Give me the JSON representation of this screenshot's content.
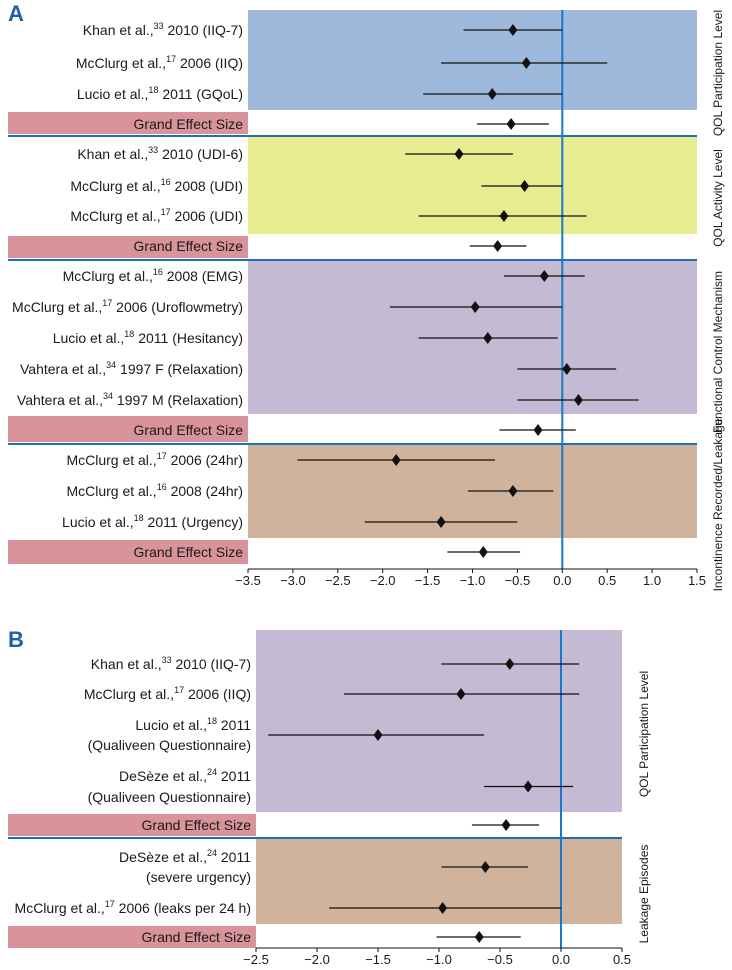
{
  "chart_data": [
    {
      "type": "forest",
      "panel": "A",
      "xlim": [
        -3.5,
        1.5
      ],
      "x_ticks": [
        -3.5,
        -3.0,
        -2.5,
        -2.0,
        -1.5,
        -1.0,
        -0.5,
        0.0,
        0.5,
        1.0,
        1.5
      ],
      "x_tick_labels": [
        "−3.5",
        "−3.0",
        "−2.5",
        "−2.0",
        "−1.5",
        "−1.0",
        "−0.5",
        "0.0",
        "0.5",
        "1.0",
        "1.5"
      ],
      "reference_line": 0,
      "groups": [
        {
          "name": "QOL Participation Level",
          "color": "#9fb9dc",
          "studies": [
            {
              "author": "Khan et al.,",
              "ref": "33",
              "detail": "2010 (IIQ-7)",
              "est": -0.55,
              "lo": -1.1,
              "hi": 0.0
            },
            {
              "author": "McClurg et al.,",
              "ref": "17",
              "detail": "2006 (IIQ)",
              "est": -0.4,
              "lo": -1.35,
              "hi": 0.5
            },
            {
              "author": "Lucio et al.,",
              "ref": "18",
              "detail": "2011 (GQoL)",
              "est": -0.78,
              "lo": -1.55,
              "hi": 0.0
            }
          ],
          "grand": {
            "label": "Grand Effect Size",
            "est": -0.57,
            "lo": -0.95,
            "hi": -0.15
          }
        },
        {
          "name": "QOL Activity Level",
          "color": "#e8ec90",
          "studies": [
            {
              "author": "Khan et al.,",
              "ref": "33",
              "detail": "2010 (UDI-6)",
              "est": -1.15,
              "lo": -1.75,
              "hi": -0.55
            },
            {
              "author": "McClurg et al.,",
              "ref": "16",
              "detail": "2008 (UDI)",
              "est": -0.42,
              "lo": -0.9,
              "hi": 0.0
            },
            {
              "author": "McClurg et al.,",
              "ref": "17",
              "detail": "2006 (UDI)",
              "est": -0.65,
              "lo": -1.6,
              "hi": 0.27
            }
          ],
          "grand": {
            "label": "Grand Effect Size",
            "est": -0.72,
            "lo": -1.03,
            "hi": -0.4
          }
        },
        {
          "name": "Functional Control Mechanism",
          "color": "#c4bad3",
          "studies": [
            {
              "author": "McClurg et al.,",
              "ref": "16",
              "detail": "2008 (EMG)",
              "est": -0.2,
              "lo": -0.65,
              "hi": 0.25
            },
            {
              "author": "McClurg et al.,",
              "ref": "17",
              "detail": "2006 (Uroflowmetry)",
              "est": -0.97,
              "lo": -1.92,
              "hi": 0.0
            },
            {
              "author": "Lucio et al.,",
              "ref": "18",
              "detail": "2011 (Hesitancy)",
              "est": -0.83,
              "lo": -1.6,
              "hi": -0.05
            },
            {
              "author": "Vahtera et al.,",
              "ref": "34",
              "detail": "1997 F (Relaxation)",
              "est": 0.05,
              "lo": -0.5,
              "hi": 0.6
            },
            {
              "author": "Vahtera et al.,",
              "ref": "34",
              "detail": "1997 M (Relaxation)",
              "est": 0.18,
              "lo": -0.5,
              "hi": 0.85
            }
          ],
          "grand": {
            "label": "Grand Effect Size",
            "est": -0.27,
            "lo": -0.7,
            "hi": 0.15
          }
        },
        {
          "name": "Incontinence Recorded/Leakage",
          "color": "#cfb39c",
          "studies": [
            {
              "author": "McClurg et al.,",
              "ref": "17",
              "detail": "2006 (24hr)",
              "est": -1.85,
              "lo": -2.95,
              "hi": -0.75
            },
            {
              "author": "McClurg et al.,",
              "ref": "16",
              "detail": "2008 (24hr)",
              "est": -0.55,
              "lo": -1.05,
              "hi": -0.1
            },
            {
              "author": "Lucio et al.,",
              "ref": "18",
              "detail": "2011 (Urgency)",
              "est": -1.35,
              "lo": -2.2,
              "hi": -0.5
            }
          ],
          "grand": {
            "label": "Grand Effect Size",
            "est": -0.88,
            "lo": -1.28,
            "hi": -0.47
          }
        }
      ]
    },
    {
      "type": "forest",
      "panel": "B",
      "xlim": [
        -2.5,
        0.5
      ],
      "x_ticks": [
        -2.5,
        -2.0,
        -1.5,
        -1.0,
        -0.5,
        0.0,
        0.5
      ],
      "x_tick_labels": [
        "−2.5",
        "−2.0",
        "−1.5",
        "−1.0",
        "−0.5",
        "0.0",
        "0.5"
      ],
      "reference_line": 0,
      "groups": [
        {
          "name": "QOL Participation Level",
          "color": "#c4bad3",
          "studies": [
            {
              "author": "Khan et al.,",
              "ref": "33",
              "detail": "2010 (IIQ-7)",
              "est": -0.42,
              "lo": -0.98,
              "hi": 0.15
            },
            {
              "author": "McClurg et al.,",
              "ref": "17",
              "detail": "2006 (IIQ)",
              "est": -0.82,
              "lo": -1.78,
              "hi": 0.15
            },
            {
              "author": "Lucio et al.,",
              "ref": "18",
              "detail": "2011",
              "line2": "(Qualiveen Questionnaire)",
              "est": -1.5,
              "lo": -2.4,
              "hi": -0.63
            },
            {
              "author": "DeSèze et al.,",
              "ref": "24",
              "detail": "2011",
              "line2": "(Qualiveen Questionnaire)",
              "est": -0.27,
              "lo": -0.63,
              "hi": 0.1
            }
          ],
          "grand": {
            "label": "Grand Effect Size",
            "est": -0.45,
            "lo": -0.73,
            "hi": -0.18
          }
        },
        {
          "name": "Leakage Episodes",
          "color": "#cfb39c",
          "studies": [
            {
              "author": "DeSèze et al.,",
              "ref": "24",
              "detail": "2011",
              "line2": "(severe urgency)",
              "est": -0.62,
              "lo": -0.98,
              "hi": -0.27
            },
            {
              "author": "McClurg et al.,",
              "ref": "17",
              "detail": "2006 (leaks per 24 h)",
              "est": -0.97,
              "lo": -1.9,
              "hi": 0.0
            }
          ],
          "grand": {
            "label": "Grand Effect Size",
            "est": -0.67,
            "lo": -1.02,
            "hi": -0.33
          }
        }
      ]
    }
  ]
}
